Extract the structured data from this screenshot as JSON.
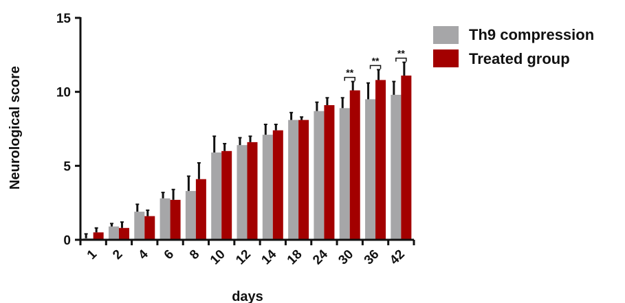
{
  "colors": {
    "series_1": "#a6a6a8",
    "series_2": "#a30000",
    "axis": "#111111"
  },
  "chart_data": {
    "type": "bar",
    "title": "",
    "xlabel": "days",
    "ylabel": "Neurological score",
    "ylim": [
      0,
      15
    ],
    "yticks": [
      "0",
      "5",
      "10",
      "15"
    ],
    "categories": [
      "1",
      "2",
      "4",
      "6",
      "8",
      "10",
      "12",
      "14",
      "18",
      "24",
      "30",
      "36",
      "42"
    ],
    "series": [
      {
        "name": "Th9 compression",
        "values": [
          0.1,
          0.9,
          1.9,
          2.8,
          3.3,
          5.9,
          6.4,
          7.1,
          8.1,
          8.7,
          8.9,
          9.5,
          9.8
        ],
        "errors": [
          0.3,
          0.2,
          0.5,
          0.4,
          1.0,
          1.1,
          0.5,
          0.7,
          0.5,
          0.6,
          0.7,
          1.1,
          0.9
        ]
      },
      {
        "name": "Treated group",
        "values": [
          0.5,
          0.8,
          1.6,
          2.7,
          4.1,
          6.0,
          6.6,
          7.4,
          8.1,
          9.1,
          10.1,
          10.8,
          11.1
        ],
        "errors": [
          0.3,
          0.4,
          0.4,
          0.7,
          1.1,
          0.5,
          0.4,
          0.4,
          0.2,
          0.5,
          0.6,
          0.7,
          0.9
        ]
      }
    ],
    "annotations": [
      {
        "category": "30",
        "text": "**"
      },
      {
        "category": "36",
        "text": "**"
      },
      {
        "category": "42",
        "text": "**"
      }
    ],
    "legend_position": "top-right",
    "grid": false
  }
}
